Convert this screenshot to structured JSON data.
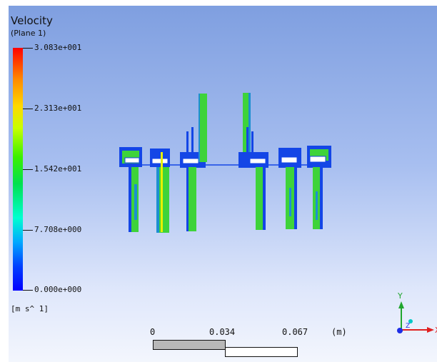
{
  "legend": {
    "title": "Velocity",
    "subtitle": "(Plane 1)",
    "units": "[m s^ 1]",
    "ticks": [
      "3.083e+001",
      "2.313e+001",
      "1.542e+001",
      "7.708e+000",
      "0.000e+000"
    ]
  },
  "scale_bar": {
    "labels": [
      "0",
      "0.034",
      "0.067",
      "(m)"
    ]
  },
  "triad": {
    "y_label": "Y",
    "z_label": "Z",
    "x_label": "X"
  },
  "colors": {
    "bg_top": "#7f9fe0",
    "bg_bottom": "#f3f6fd",
    "geo_blue": "#1446e6",
    "geo_green": "#3ed33a",
    "axis_green": "#21a62e",
    "axis_red": "#e02020",
    "axis_blue": "#1e2ee6",
    "axis_cyan": "#00c8c8"
  }
}
